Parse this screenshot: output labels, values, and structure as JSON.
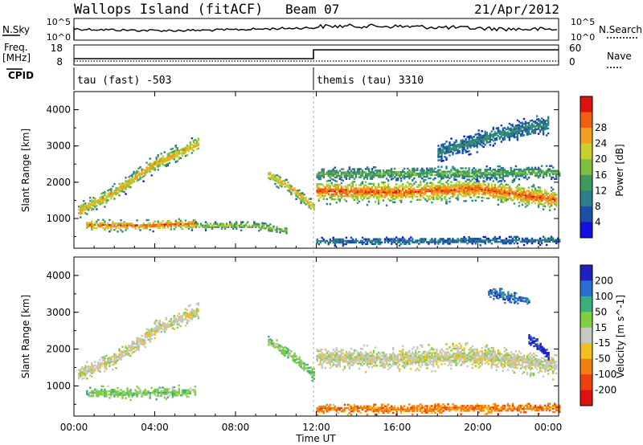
{
  "header": {
    "title": "Wallops Island (fitACF)",
    "beam": "Beam 07",
    "date": "21/Apr/2012"
  },
  "summary_panels": {
    "nsky_label": "N.Sky",
    "nsearch_label": "N.Search",
    "nsky_ticks": [
      "10^5",
      "10^0"
    ],
    "nsearch_ticks": [
      "10^5",
      "10^0"
    ],
    "freq_label": "Freq.",
    "freq_unit": "[MHz]",
    "freq_ticks": [
      "18",
      "8"
    ],
    "nave_label": "Nave",
    "nave_ticks": [
      "60",
      "0"
    ],
    "cpid_label": "CPID",
    "cpid_segments": [
      {
        "label": "tau (fast) -503",
        "start_hour": 0
      },
      {
        "label": "themis (tau) 3310",
        "start_hour": 12
      }
    ]
  },
  "chart_data": [
    {
      "type": "heatmap",
      "name": "power",
      "ylabel": "Slant Range [km]",
      "xlim": [
        0,
        24
      ],
      "ylim": [
        180,
        4500
      ],
      "yticks": [
        1000,
        2000,
        3000,
        4000
      ],
      "colorbar": {
        "label": "Power [dB]",
        "ticks": [
          4,
          8,
          12,
          16,
          20,
          24,
          28
        ],
        "colors": [
          "#1010e0",
          "#1a4fa8",
          "#2e7d8c",
          "#3d9a5c",
          "#7fbf3f",
          "#c8d030",
          "#f0a020",
          "#f06010",
          "#e01010"
        ]
      },
      "bands": [
        {
          "t": [
            0.2,
            2.0,
            4.0,
            6.2
          ],
          "r": [
            1200,
            1700,
            2500,
            3050
          ],
          "w": 180,
          "level": 0.75
        },
        {
          "t": [
            0.6,
            3.0,
            6.0
          ],
          "r": [
            800,
            780,
            830
          ],
          "w": 120,
          "level": 0.9
        },
        {
          "t": [
            6.0,
            9.0,
            10.5
          ],
          "r": [
            780,
            780,
            650
          ],
          "w": 90,
          "level": 0.55
        },
        {
          "t": [
            9.6,
            11.0,
            11.9
          ],
          "r": [
            2200,
            1700,
            1250
          ],
          "w": 140,
          "level": 0.75
        },
        {
          "t": [
            12.0,
            16.0,
            20.0,
            23.9
          ],
          "r": [
            1750,
            1700,
            1800,
            1500
          ],
          "w": 260,
          "level": 0.9
        },
        {
          "t": [
            12.0,
            24.0
          ],
          "r": [
            2200,
            2250
          ],
          "w": 160,
          "level": 0.45
        },
        {
          "t": [
            18.0,
            21.0,
            23.5
          ],
          "r": [
            2800,
            3300,
            3600
          ],
          "w": 220,
          "level": 0.3
        },
        {
          "t": [
            12.0,
            24.0
          ],
          "r": [
            350,
            380
          ],
          "w": 90,
          "level": 0.25
        }
      ]
    },
    {
      "type": "heatmap",
      "name": "velocity",
      "ylabel": "Slant Range [km]",
      "xlabel": "Time UT",
      "xlim": [
        0,
        24
      ],
      "ylim": [
        180,
        4500
      ],
      "yticks": [
        1000,
        2000,
        3000,
        4000
      ],
      "xticks": [
        "00:00",
        "04:00",
        "08:00",
        "12:00",
        "16:00",
        "20:00",
        "00:00"
      ],
      "colorbar": {
        "label": "Velocity [m s^-1]",
        "ticks": [
          "200",
          "100",
          "50",
          "15",
          "-15",
          "-50",
          "-100",
          "-200"
        ],
        "colors": [
          "#2020c0",
          "#2a6fd0",
          "#3ab07a",
          "#7fd040",
          "#c8c8c0",
          "#f0c020",
          "#f08010",
          "#f04010",
          "#e01010"
        ]
      },
      "bands": [
        {
          "t": [
            0.2,
            2.0,
            4.0,
            6.2
          ],
          "r": [
            1300,
            1700,
            2500,
            3050
          ],
          "w": 180,
          "v": 4
        },
        {
          "t": [
            0.6,
            3.0,
            6.0
          ],
          "r": [
            800,
            780,
            830
          ],
          "w": 130,
          "v": 3
        },
        {
          "t": [
            9.6,
            11.0,
            11.9
          ],
          "r": [
            2200,
            1700,
            1250
          ],
          "w": 140,
          "v": 3
        },
        {
          "t": [
            12.0,
            16.0,
            20.0,
            23.9
          ],
          "r": [
            1750,
            1700,
            1800,
            1500
          ],
          "w": 260,
          "v": 4
        },
        {
          "t": [
            22.5,
            23.5
          ],
          "r": [
            2300,
            1800
          ],
          "w": 150,
          "v": 0
        },
        {
          "t": [
            20.5,
            22.5
          ],
          "r": [
            3500,
            3300
          ],
          "w": 130,
          "v": 1
        },
        {
          "t": [
            12.0,
            24.0
          ],
          "r": [
            350,
            380
          ],
          "w": 110,
          "v": 6
        }
      ]
    }
  ]
}
